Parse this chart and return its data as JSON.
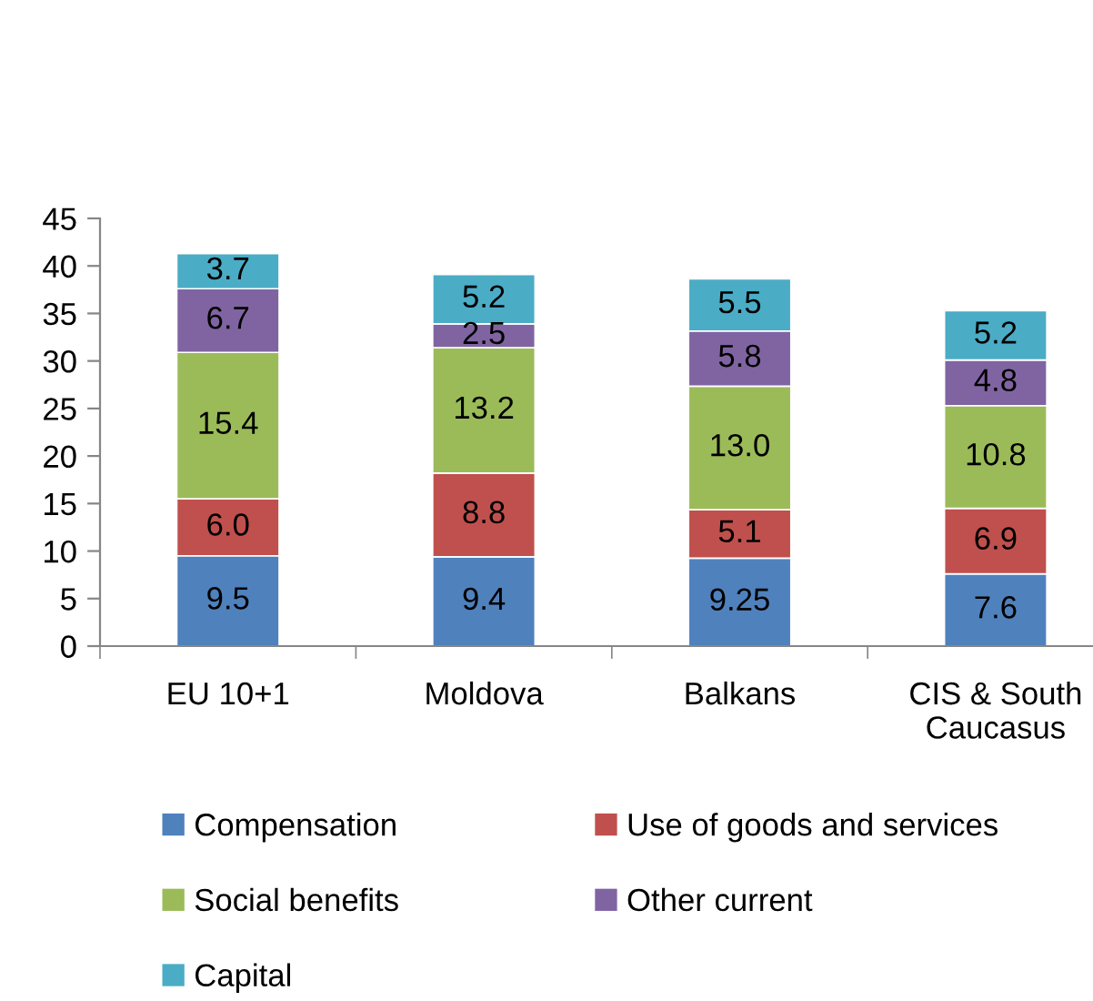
{
  "chart_data": {
    "type": "bar",
    "stacked": true,
    "categories": [
      "EU 10+1",
      "Moldova",
      "Balkans",
      "CIS & South Caucasus"
    ],
    "ylim": [
      0,
      45
    ],
    "yticks": [
      0,
      5,
      10,
      15,
      20,
      25,
      30,
      35,
      40,
      45
    ],
    "grid": false,
    "legend": "bottom",
    "series": [
      {
        "name": "Compensation",
        "color": "#4f81bd",
        "values": [
          9.5,
          9.4,
          9.25,
          7.6
        ],
        "value_labels": [
          "9.5",
          "9.4",
          "9.25",
          "7.6"
        ]
      },
      {
        "name": "Use of goods and services",
        "color": "#c0504d",
        "values": [
          6.0,
          8.8,
          5.1,
          6.9
        ],
        "value_labels": [
          "6.0",
          "8.8",
          "5.1",
          "6.9"
        ]
      },
      {
        "name": "Social benefits",
        "color": "#9bbb59",
        "values": [
          15.4,
          13.2,
          13.0,
          10.8
        ],
        "value_labels": [
          "15.4",
          "13.2",
          "13.0",
          "10.8"
        ]
      },
      {
        "name": "Other current",
        "color": "#8064a2",
        "values": [
          6.7,
          2.5,
          5.8,
          4.8
        ],
        "value_labels": [
          "6.7",
          "2.5",
          "5.8",
          "4.8"
        ]
      },
      {
        "name": "Capital",
        "color": "#4bacc6",
        "values": [
          3.7,
          5.2,
          5.5,
          5.2
        ],
        "value_labels": [
          "3.7",
          "5.2",
          "5.5",
          "5.2"
        ]
      }
    ]
  }
}
